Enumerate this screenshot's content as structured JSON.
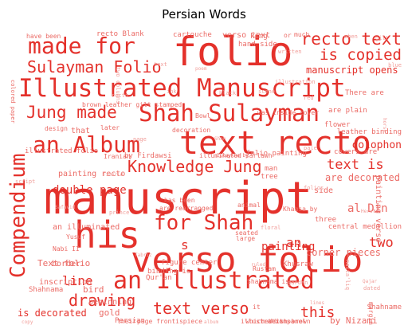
{
  "title": "Persian Words",
  "palette": {
    "red": "#e4312b",
    "light_red": "#eb6b66",
    "pale_red": "#f19e9a",
    "background": "#ffffff"
  },
  "words": [
    {
      "text": "manuscript",
      "shade": "red"
    },
    {
      "text": "folio",
      "shade": "red"
    },
    {
      "text": "text recto",
      "shade": "red"
    },
    {
      "text": "Illustrated Manuscript",
      "shade": "red"
    },
    {
      "text": "verso folio",
      "shade": "red"
    },
    {
      "text": "his",
      "shade": "red"
    },
    {
      "text": "Shah Sulayman",
      "shade": "red"
    },
    {
      "text": "made for",
      "shade": "red"
    },
    {
      "text": "Compendium",
      "shade": "red"
    },
    {
      "text": "an Illustrated",
      "shade": "red"
    },
    {
      "text": "an Album",
      "shade": "red"
    },
    {
      "text": "recto text",
      "shade": "red"
    },
    {
      "text": "Sulayman Folio",
      "shade": "red"
    },
    {
      "text": "Jung made",
      "shade": "red"
    },
    {
      "text": "Knowledge Jung",
      "shade": "red"
    },
    {
      "text": "for Shah",
      "shade": "red"
    },
    {
      "text": "is copied",
      "shade": "red"
    },
    {
      "text": "text verso",
      "shade": "red"
    },
    {
      "text": "drawing",
      "shade": "red"
    },
    {
      "text": "text is",
      "shade": "red"
    },
    {
      "text": "manuscript opens",
      "shade": "red"
    },
    {
      "text": "double page",
      "shade": "red"
    },
    {
      "text": "two",
      "shade": "red"
    },
    {
      "text": "line",
      "shade": "red"
    },
    {
      "text": "this",
      "shade": "red"
    },
    {
      "text": "colophon",
      "shade": "red"
    },
    {
      "text": "is decorated",
      "shade": "red"
    },
    {
      "text": "painting",
      "shade": "red"
    },
    {
      "text": "s",
      "shade": "red"
    },
    {
      "text": "an",
      "shade": "red"
    },
    {
      "text": "painting recto",
      "shade": "light_red"
    },
    {
      "text": "are decorated",
      "shade": "light_red"
    },
    {
      "text": "Text folio",
      "shade": "light_red"
    },
    {
      "text": "corner pieces",
      "shade": "light_red"
    },
    {
      "text": "al Din",
      "shade": "light_red"
    },
    {
      "text": "bird",
      "shade": "light_red"
    },
    {
      "text": "beginning",
      "shade": "light_red"
    },
    {
      "text": "gold",
      "shade": "light_red"
    },
    {
      "text": "Shahnama",
      "shade": "light_red"
    },
    {
      "text": "by Nizami",
      "shade": "light_red"
    },
    {
      "text": "folio painting",
      "shade": "light_red"
    },
    {
      "text": "leather binding",
      "shade": "light_red"
    },
    {
      "text": "by Firdawsi",
      "shade": "light_red"
    },
    {
      "text": "illuminated sarlawh",
      "shade": "light_red"
    },
    {
      "text": "covers are",
      "shade": "light_red"
    },
    {
      "text": "an illuminated",
      "shade": "light_red"
    },
    {
      "text": "inscription",
      "shade": "light_red"
    },
    {
      "text": "border",
      "shade": "light_red"
    },
    {
      "text": "central medallion",
      "shade": "light_red"
    },
    {
      "text": "binding is",
      "shade": "light_red"
    },
    {
      "text": "verso text",
      "shade": "light_red"
    },
    {
      "text": "hand side",
      "shade": "light_red"
    },
    {
      "text": "recto Blank",
      "shade": "light_red"
    },
    {
      "text": "cartouche",
      "shade": "light_red"
    },
    {
      "text": "brown leather gilt stamped",
      "shade": "light_red"
    },
    {
      "text": "There are",
      "shade": "light_red"
    },
    {
      "text": "are plain",
      "shade": "light_red"
    },
    {
      "text": "was inside cover",
      "shade": "light_red"
    },
    {
      "text": "decoration",
      "shade": "light_red"
    },
    {
      "text": "Bowl",
      "shade": "light_red"
    },
    {
      "text": "flower",
      "shade": "light_red"
    },
    {
      "text": "design",
      "shade": "light_red"
    },
    {
      "text": "that",
      "shade": "light_red"
    },
    {
      "text": "later",
      "shade": "light_red"
    },
    {
      "text": "have been",
      "shade": "light_red"
    },
    {
      "text": "king",
      "shade": "light_red"
    },
    {
      "text": "or",
      "shade": "light_red"
    },
    {
      "text": "much",
      "shade": "light_red"
    },
    {
      "text": "illustrated folio",
      "shade": "light_red"
    },
    {
      "text": "Iranian",
      "shade": "light_red"
    },
    {
      "text": "side",
      "shade": "light_red"
    },
    {
      "text": "Rustam",
      "shade": "light_red"
    },
    {
      "text": "Shahnama is",
      "shade": "light_red"
    },
    {
      "text": "Qur'an",
      "shade": "light_red"
    },
    {
      "text": "Khusraw",
      "shade": "light_red"
    },
    {
      "text": "figure center",
      "shade": "light_red"
    },
    {
      "text": "are rearranged",
      "shade": "light_red"
    },
    {
      "text": "Persian",
      "shade": "light_red"
    },
    {
      "text": "page frontispiece",
      "shade": "light_red"
    },
    {
      "text": "text panel",
      "shade": "light_red"
    },
    {
      "text": "reddish brown",
      "shade": "light_red"
    },
    {
      "text": "Shahname",
      "shade": "light_red"
    },
    {
      "text": "margin",
      "shade": "light_red"
    },
    {
      "text": "large",
      "shade": "light_red"
    },
    {
      "text": "three",
      "shade": "light_red"
    },
    {
      "text": "man",
      "shade": "light_red"
    },
    {
      "text": "tree",
      "shade": "light_red"
    },
    {
      "text": "animal",
      "shade": "light_red"
    },
    {
      "text": "seated",
      "shade": "light_red"
    },
    {
      "text": "illustrations",
      "shade": "light_red"
    },
    {
      "text": "Yusuf",
      "shade": "light_red"
    },
    {
      "text": "it",
      "shade": "light_red"
    },
    {
      "text": "which",
      "shade": "light_red"
    },
    {
      "text": "their",
      "shade": "light_red"
    },
    {
      "text": "Nabi II",
      "shade": "light_red"
    },
    {
      "text": "colored paper",
      "shade": "light_red"
    },
    {
      "text": "Zulaykha by",
      "shade": "light_red"
    },
    {
      "text": "Khamsa by",
      "shade": "light_red"
    },
    {
      "text": "has been",
      "shade": "light_red"
    },
    {
      "text": "when",
      "shade": "pale_red"
    },
    {
      "text": "scene",
      "shade": "pale_red"
    },
    {
      "text": "pale",
      "shade": "pale_red"
    },
    {
      "text": "painting verso",
      "shade": "light_red"
    },
    {
      "text": "recto",
      "shade": "pale_red"
    },
    {
      "text": "text",
      "shade": "pale_red"
    },
    {
      "text": "two columns",
      "shade": "pale_red"
    },
    {
      "text": "illustration",
      "shade": "pale_red"
    },
    {
      "text": "written",
      "shade": "pale_red"
    },
    {
      "text": "page",
      "shade": "pale_red"
    },
    {
      "text": "folios",
      "shade": "pale_red"
    },
    {
      "text": "script",
      "shade": "pale_red"
    },
    {
      "text": "gilt",
      "shade": "pale_red"
    },
    {
      "text": "blue",
      "shade": "pale_red"
    },
    {
      "text": "black",
      "shade": "pale_red"
    },
    {
      "text": "red",
      "shade": "pale_red"
    },
    {
      "text": "ink",
      "shade": "pale_red"
    },
    {
      "text": "floral",
      "shade": "pale_red"
    },
    {
      "text": "dated",
      "shade": "pale_red"
    },
    {
      "text": "album",
      "shade": "pale_red"
    },
    {
      "text": "copy",
      "shade": "pale_red"
    },
    {
      "text": "lines",
      "shade": "pale_red"
    },
    {
      "text": "nasta'liq",
      "shade": "pale_red"
    },
    {
      "text": "Shah",
      "shade": "pale_red"
    },
    {
      "text": "prince",
      "shade": "pale_red"
    },
    {
      "text": "horse",
      "shade": "pale_red"
    },
    {
      "text": "garden",
      "shade": "pale_red"
    },
    {
      "text": "poem",
      "shade": "pale_red"
    },
    {
      "text": "Herat",
      "shade": "pale_red"
    },
    {
      "text": "Tabriz",
      "shade": "pale_red"
    },
    {
      "text": "Safavid",
      "shade": "pale_red"
    },
    {
      "text": "Timurid",
      "shade": "pale_red"
    },
    {
      "text": "Qajar",
      "shade": "pale_red"
    },
    {
      "text": "ruled",
      "shade": "pale_red"
    },
    {
      "text": "panel",
      "shade": "pale_red"
    }
  ]
}
